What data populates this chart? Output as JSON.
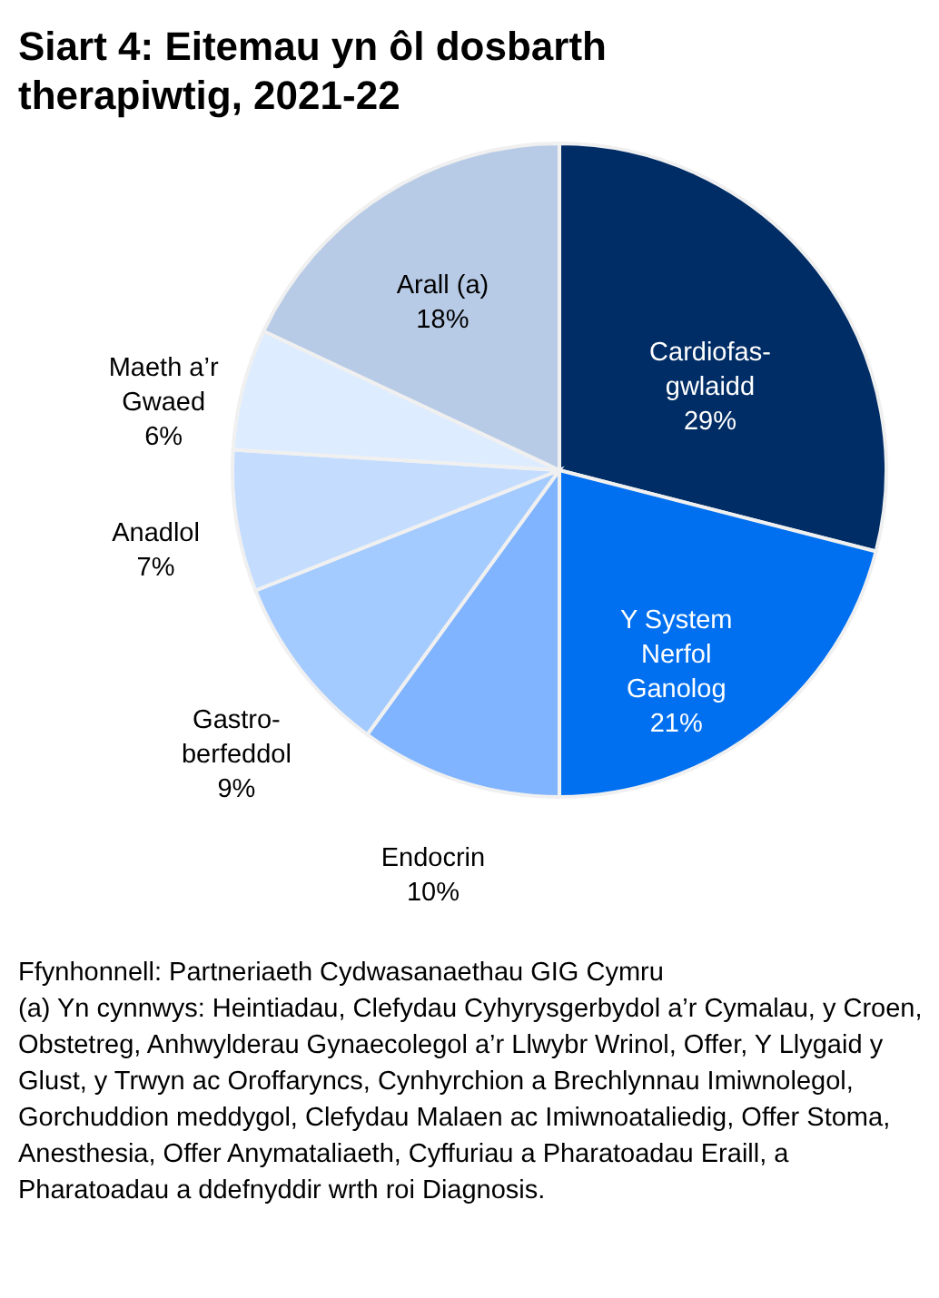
{
  "chart_data": {
    "type": "pie",
    "title": "Siart 4: Eitemau yn ôl dosbarth therapiwtig, 2021-22",
    "categories": [
      "Cardiofas-\ngwlaidd",
      "Y System\nNerfol\nGanolog",
      "Endocrin",
      "Gastro-\nberfeddol",
      "Anadlol",
      "Maeth a’r\nGwaed",
      "Arall (a)"
    ],
    "values": [
      29,
      21,
      10,
      9,
      7,
      6,
      18
    ],
    "value_labels": [
      "29%",
      "21%",
      "10%",
      "9%",
      "7%",
      "6%",
      "18%"
    ],
    "colors": [
      "#002d66",
      "#0070f0",
      "#80b4ff",
      "#a4cbff",
      "#c4ddff",
      "#deecff",
      "#b8cbe6"
    ],
    "annotations": [
      "Ffynhonnell: Partneriaeth Cydwasanaethau GIG Cymru",
      "(a) Yn cynnwys: Heintiadau, Clefydau Cyhyrysgerbydol a’r Cymalau, y Croen, Obstetreg, Anhwylderau Gynaecolegol a’r Llwybr Wrinol, Offer, Y Llygaid y Glust, y Trwyn ac Oroffaryncs, Cynhyrchion a Brechlynnau Imiwnolegol, Gorchuddion meddygol, Clefydau Malaen ac Imiwnoataliedig, Offer Stoma, Anesthesia, Offer Anymataliaeth, Cyffuriau a Pharatoadau Eraill, a Pharatoadau a ddefnyddir wrth roi Diagnosis."
    ]
  }
}
